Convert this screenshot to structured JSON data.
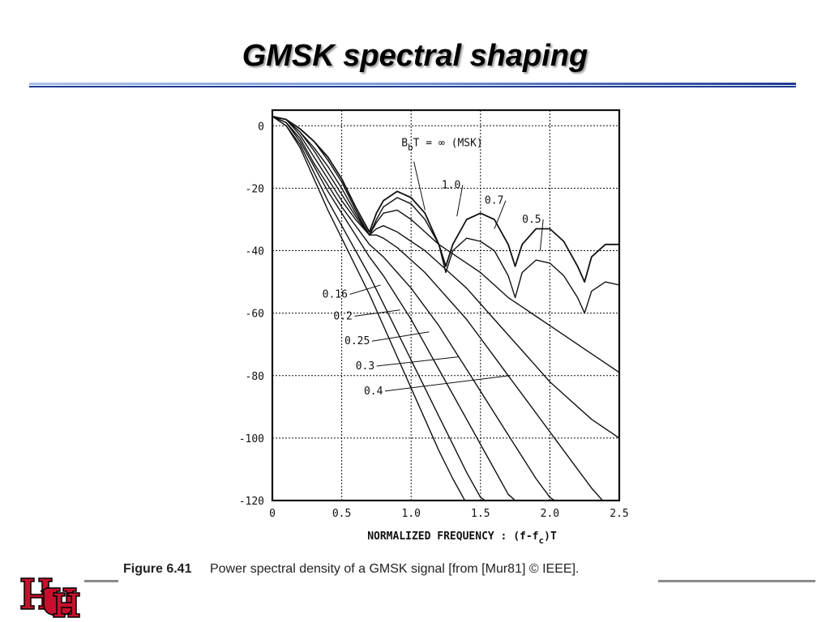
{
  "slide": {
    "title": "GMSK spectral shaping"
  },
  "caption": {
    "figure_number": "Figure 6.41",
    "text": "Power spectral density of a GMSK signal [from [Mur81] © IEEE]."
  },
  "logo": {
    "text": "UH",
    "color": "#c8102e"
  },
  "colors": {
    "title_rule_dark": "#1f3a93",
    "title_rule_light": "#a9c0e8",
    "plot_ink": "#111111"
  },
  "chart_data": {
    "type": "line",
    "title": "",
    "xlabel": "NORMALIZED FREQUENCY : (f-f_c)T",
    "xlabel_parts": {
      "main": "NORMALIZED FREQUENCY : (f-f",
      "sub": "c",
      "tail": ")T"
    },
    "ylabel": "",
    "xlim": [
      0,
      2.5
    ],
    "ylim": [
      -120,
      5
    ],
    "x_ticks": [
      0,
      0.5,
      1.0,
      1.5,
      2.0,
      2.5
    ],
    "x_tick_labels": [
      "0",
      "0.5",
      "1.0",
      "1.5",
      "2.0",
      "2.5"
    ],
    "y_ticks": [
      0,
      -20,
      -40,
      -60,
      -80,
      -100,
      -120
    ],
    "y_tick_labels": [
      "0",
      "-20",
      "-40",
      "-60",
      "-80",
      "-100",
      "-120"
    ],
    "grid": true,
    "legend": "inline curve labels",
    "series_label_prefix": {
      "main": "B",
      "sub": "b",
      "tail": "T = ∞ (MSK)"
    },
    "series": [
      {
        "name": "B_bT = ∞ (MSK)",
        "label": "",
        "x": [
          0,
          0.1,
          0.2,
          0.3,
          0.4,
          0.5,
          0.6,
          0.7,
          0.75,
          0.8,
          0.9,
          1.0,
          1.1,
          1.2,
          1.25,
          1.3,
          1.4,
          1.5,
          1.6,
          1.7,
          1.75,
          1.8,
          1.9,
          2.0,
          2.1,
          2.2,
          2.25,
          2.3,
          2.4,
          2.5
        ],
        "y": [
          3,
          2,
          -1,
          -5,
          -10,
          -17,
          -26,
          -34,
          -28,
          -24,
          -21,
          -23,
          -28,
          -38,
          -45,
          -38,
          -30,
          -28,
          -30,
          -38,
          -45,
          -38,
          -33,
          -33,
          -37,
          -45,
          -50,
          -42,
          -38,
          -38
        ]
      },
      {
        "name": "1.0",
        "label": "1.0",
        "x": [
          0,
          0.1,
          0.2,
          0.3,
          0.4,
          0.5,
          0.6,
          0.7,
          0.75,
          0.8,
          0.9,
          1.0,
          1.1,
          1.2,
          1.25,
          1.3,
          1.4,
          1.5,
          1.6,
          1.7,
          1.75,
          1.8,
          1.9,
          2.0,
          2.1,
          2.2,
          2.25,
          2.3,
          2.4,
          2.5
        ],
        "y": [
          3,
          2,
          -1,
          -5,
          -11,
          -18,
          -27,
          -35,
          -30,
          -26,
          -23,
          -25,
          -30,
          -38,
          -47,
          -40,
          -36,
          -37,
          -40,
          -48,
          -55,
          -47,
          -43,
          -44,
          -48,
          -55,
          -60,
          -53,
          -50,
          -51
        ]
      },
      {
        "name": "0.7",
        "label": "0.7",
        "x": [
          0,
          0.1,
          0.2,
          0.3,
          0.4,
          0.5,
          0.6,
          0.7,
          0.75,
          0.8,
          0.9,
          1.0,
          1.1,
          1.2,
          1.3,
          1.4,
          1.5,
          1.6,
          1.7,
          1.8,
          1.9,
          2.0,
          2.1,
          2.2,
          2.3,
          2.4,
          2.5
        ],
        "y": [
          3,
          2,
          -2,
          -7,
          -13,
          -20,
          -28,
          -35,
          -31,
          -28,
          -27,
          -30,
          -34,
          -38,
          -41,
          -44,
          -47,
          -51,
          -55,
          -58,
          -61,
          -64,
          -67,
          -70,
          -73,
          -76,
          -79
        ]
      },
      {
        "name": "0.5",
        "label": "0.5",
        "x": [
          0,
          0.1,
          0.2,
          0.3,
          0.4,
          0.5,
          0.6,
          0.7,
          0.75,
          0.8,
          0.9,
          1.0,
          1.1,
          1.2,
          1.3,
          1.4,
          1.5,
          1.6,
          1.7,
          1.8,
          1.9,
          2.0,
          2.1,
          2.2,
          2.3,
          2.4,
          2.5
        ],
        "y": [
          3,
          2,
          -2,
          -8,
          -15,
          -22,
          -29,
          -35,
          -33,
          -32,
          -34,
          -37,
          -40,
          -44,
          -48,
          -52,
          -57,
          -62,
          -67,
          -72,
          -77,
          -82,
          -86,
          -90,
          -94,
          -97,
          -100
        ]
      },
      {
        "name": "0.4",
        "label": "0.4",
        "x": [
          0,
          0.1,
          0.2,
          0.3,
          0.4,
          0.5,
          0.6,
          0.7,
          0.75,
          0.8,
          0.9,
          1.0,
          1.1,
          1.2,
          1.3,
          1.4,
          1.5,
          1.6,
          1.7,
          1.8,
          1.9,
          2.0,
          2.1,
          2.2,
          2.3,
          2.4
        ],
        "y": [
          3,
          2,
          -3,
          -10,
          -17,
          -24,
          -30,
          -35,
          -35,
          -36,
          -39,
          -43,
          -47,
          -52,
          -57,
          -62,
          -68,
          -74,
          -80,
          -86,
          -92,
          -98,
          -104,
          -110,
          -116,
          -121
        ]
      },
      {
        "name": "0.3",
        "label": "0.3",
        "x": [
          0,
          0.1,
          0.2,
          0.3,
          0.4,
          0.5,
          0.6,
          0.7,
          0.75,
          0.8,
          0.9,
          1.0,
          1.1,
          1.2,
          1.3,
          1.4,
          1.5,
          1.6,
          1.7,
          1.8,
          1.9,
          2.0,
          2.1
        ],
        "y": [
          3,
          1,
          -4,
          -12,
          -19,
          -26,
          -32,
          -38,
          -40,
          -42,
          -47,
          -52,
          -58,
          -64,
          -71,
          -78,
          -85,
          -92,
          -99,
          -106,
          -113,
          -119,
          -122
        ]
      },
      {
        "name": "0.25",
        "label": "0.25",
        "x": [
          0,
          0.1,
          0.2,
          0.3,
          0.4,
          0.5,
          0.6,
          0.7,
          0.8,
          0.9,
          1.0,
          1.1,
          1.2,
          1.3,
          1.4,
          1.5,
          1.6,
          1.7,
          1.8
        ],
        "y": [
          3,
          1,
          -5,
          -13,
          -21,
          -28,
          -35,
          -42,
          -48,
          -55,
          -62,
          -70,
          -78,
          -86,
          -94,
          -102,
          -110,
          -118,
          -122
        ]
      },
      {
        "name": "0.2",
        "label": "0.2",
        "x": [
          0,
          0.1,
          0.2,
          0.3,
          0.4,
          0.5,
          0.6,
          0.7,
          0.8,
          0.9,
          1.0,
          1.1,
          1.2,
          1.3,
          1.4,
          1.5,
          1.6
        ],
        "y": [
          3,
          0,
          -6,
          -15,
          -24,
          -32,
          -40,
          -48,
          -57,
          -66,
          -75,
          -84,
          -93,
          -102,
          -111,
          -119,
          -122
        ]
      },
      {
        "name": "0.16",
        "label": "0.16",
        "x": [
          0,
          0.1,
          0.2,
          0.3,
          0.4,
          0.5,
          0.6,
          0.7,
          0.8,
          0.9,
          1.0,
          1.1,
          1.2,
          1.3,
          1.4,
          1.45
        ],
        "y": [
          3,
          0,
          -7,
          -17,
          -27,
          -36,
          -45,
          -54,
          -64,
          -74,
          -84,
          -94,
          -104,
          -113,
          -121,
          -122
        ]
      }
    ]
  }
}
